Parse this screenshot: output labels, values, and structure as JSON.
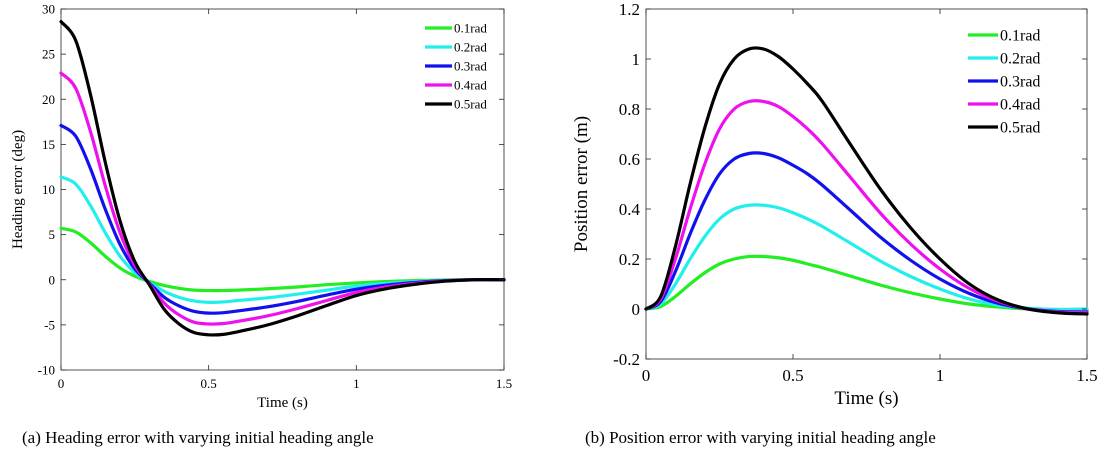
{
  "chart_data": [
    {
      "type": "line",
      "panel": "a",
      "caption": "(a) Heading error with varying initial heading angle",
      "xlabel": "Time (s)",
      "ylabel": "Heading error (deg)",
      "xlim": [
        0,
        1.5
      ],
      "ylim": [
        -10,
        30
      ],
      "xticks": [
        0,
        0.5,
        1,
        1.5
      ],
      "xtick_labels": [
        "0",
        "0.5",
        "1",
        "1.5"
      ],
      "yticks": [
        -10,
        -5,
        0,
        5,
        10,
        15,
        20,
        25,
        30
      ],
      "ytick_labels": [
        "-10",
        "-5",
        "0",
        "5",
        "10",
        "15",
        "20",
        "25",
        "30"
      ],
      "grid": false,
      "legend_position": "top-right",
      "x": [
        0,
        0.05,
        0.1,
        0.15,
        0.2,
        0.25,
        0.3,
        0.35,
        0.4,
        0.45,
        0.5,
        0.55,
        0.6,
        0.7,
        0.8,
        0.9,
        1.0,
        1.1,
        1.2,
        1.3,
        1.4,
        1.5
      ],
      "series": [
        {
          "name": "0.1rad",
          "color": "#22ee22",
          "values": [
            5.7,
            5.3,
            4.1,
            2.6,
            1.3,
            0.4,
            -0.2,
            -0.65,
            -0.95,
            -1.15,
            -1.2,
            -1.2,
            -1.15,
            -1.0,
            -0.8,
            -0.55,
            -0.35,
            -0.2,
            -0.1,
            -0.03,
            0,
            0
          ]
        },
        {
          "name": "0.2rad",
          "color": "#22eeee",
          "values": [
            11.4,
            10.6,
            8.2,
            5.2,
            2.6,
            0.8,
            -0.3,
            -1.3,
            -1.95,
            -2.35,
            -2.5,
            -2.45,
            -2.3,
            -2.0,
            -1.6,
            -1.15,
            -0.7,
            -0.4,
            -0.2,
            -0.06,
            0,
            0
          ]
        },
        {
          "name": "0.3rad",
          "color": "#1111ee",
          "values": [
            17.1,
            15.9,
            12.3,
            7.8,
            3.9,
            1.2,
            -0.4,
            -1.95,
            -2.9,
            -3.5,
            -3.7,
            -3.65,
            -3.45,
            -3.0,
            -2.4,
            -1.7,
            -1.05,
            -0.6,
            -0.3,
            -0.1,
            0,
            0
          ]
        },
        {
          "name": "0.4rad",
          "color": "#ee11ee",
          "values": [
            22.9,
            21.2,
            16.4,
            10.4,
            5.2,
            1.6,
            -0.5,
            -2.6,
            -3.9,
            -4.7,
            -4.9,
            -4.85,
            -4.6,
            -4.0,
            -3.2,
            -2.3,
            -1.4,
            -0.8,
            -0.4,
            -0.13,
            0,
            0
          ]
        },
        {
          "name": "0.5rad",
          "color": "#000000",
          "values": [
            28.6,
            26.5,
            20.5,
            13.0,
            6.5,
            2.0,
            -0.6,
            -3.3,
            -4.9,
            -5.85,
            -6.1,
            -6.05,
            -5.75,
            -5.0,
            -4.0,
            -2.85,
            -1.75,
            -1.0,
            -0.5,
            -0.16,
            0,
            0
          ]
        }
      ]
    },
    {
      "type": "line",
      "panel": "b",
      "caption": "(b) Position error with varying initial heading angle",
      "xlabel": "Time (s)",
      "ylabel": "Position error (m)",
      "xlim": [
        0,
        1.5
      ],
      "ylim": [
        -0.2,
        1.2
      ],
      "xticks": [
        0,
        0.5,
        1,
        1.5
      ],
      "xtick_labels": [
        "0",
        "0.5",
        "1",
        "1.5"
      ],
      "yticks": [
        -0.2,
        0,
        0.2,
        0.4,
        0.6,
        0.8,
        1,
        1.2
      ],
      "ytick_labels": [
        "-0.2",
        "0",
        "0.2",
        "0.4",
        "0.6",
        "0.8",
        "1",
        "1.2"
      ],
      "grid": false,
      "legend_position": "top-right",
      "x": [
        0,
        0.05,
        0.1,
        0.15,
        0.2,
        0.25,
        0.3,
        0.35,
        0.4,
        0.45,
        0.5,
        0.55,
        0.6,
        0.7,
        0.8,
        0.9,
        1.0,
        1.1,
        1.2,
        1.3,
        1.4,
        1.5
      ],
      "series": [
        {
          "name": "0.1rad",
          "color": "#22ee22",
          "values": [
            0,
            0.01,
            0.05,
            0.1,
            0.145,
            0.18,
            0.2,
            0.21,
            0.21,
            0.205,
            0.195,
            0.18,
            0.165,
            0.13,
            0.095,
            0.065,
            0.04,
            0.02,
            0.008,
            0.0,
            -0.002,
            -0.003
          ]
        },
        {
          "name": "0.2rad",
          "color": "#22eeee",
          "values": [
            0,
            0.02,
            0.1,
            0.2,
            0.29,
            0.36,
            0.4,
            0.415,
            0.415,
            0.405,
            0.385,
            0.36,
            0.33,
            0.26,
            0.19,
            0.13,
            0.08,
            0.04,
            0.015,
            0.003,
            -0.002,
            0.0
          ]
        },
        {
          "name": "0.3rad",
          "color": "#1111ee",
          "values": [
            0,
            0.03,
            0.15,
            0.3,
            0.435,
            0.54,
            0.6,
            0.622,
            0.622,
            0.605,
            0.575,
            0.54,
            0.495,
            0.39,
            0.285,
            0.195,
            0.12,
            0.062,
            0.022,
            0.0,
            -0.01,
            -0.012
          ]
        },
        {
          "name": "0.4rad",
          "color": "#ee11ee",
          "values": [
            0,
            0.04,
            0.2,
            0.4,
            0.58,
            0.72,
            0.8,
            0.83,
            0.83,
            0.81,
            0.77,
            0.72,
            0.66,
            0.52,
            0.38,
            0.26,
            0.16,
            0.082,
            0.03,
            0.0,
            -0.012,
            -0.015
          ]
        },
        {
          "name": "0.5rad",
          "color": "#000000",
          "values": [
            0,
            0.05,
            0.25,
            0.5,
            0.725,
            0.9,
            1.0,
            1.04,
            1.04,
            1.01,
            0.96,
            0.9,
            0.83,
            0.65,
            0.475,
            0.325,
            0.2,
            0.1,
            0.035,
            0.0,
            -0.015,
            -0.02
          ]
        }
      ]
    }
  ]
}
